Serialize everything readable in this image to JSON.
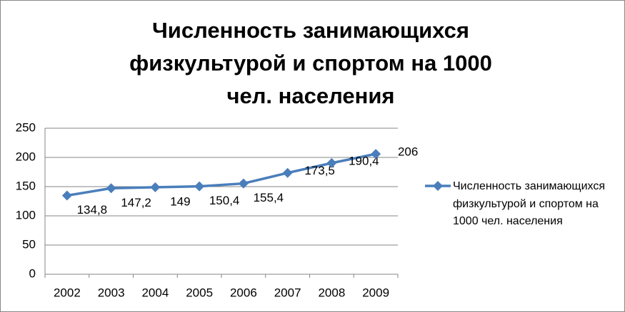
{
  "chart_data": {
    "type": "line",
    "title": "Численность занимающихся физкультурой и спортом на 1000 чел. населения",
    "categories": [
      "2002",
      "2003",
      "2004",
      "2005",
      "2006",
      "2007",
      "2008",
      "2009"
    ],
    "series": [
      {
        "name": "Численность занимающихся физкультурой и спортом на 1000 чел. населения",
        "color": "#4a7ebb",
        "values": [
          134.8,
          147.2,
          149,
          150.4,
          155.4,
          173.5,
          190.4,
          206
        ],
        "value_labels": [
          "134,8",
          "147,2",
          "149",
          "150,4",
          "155,4",
          "173,5",
          "190,4",
          "206"
        ]
      }
    ],
    "ylim": [
      0,
      250
    ],
    "yticks": [
      0,
      50,
      100,
      150,
      200,
      250
    ],
    "grid": true,
    "legend": "right"
  }
}
